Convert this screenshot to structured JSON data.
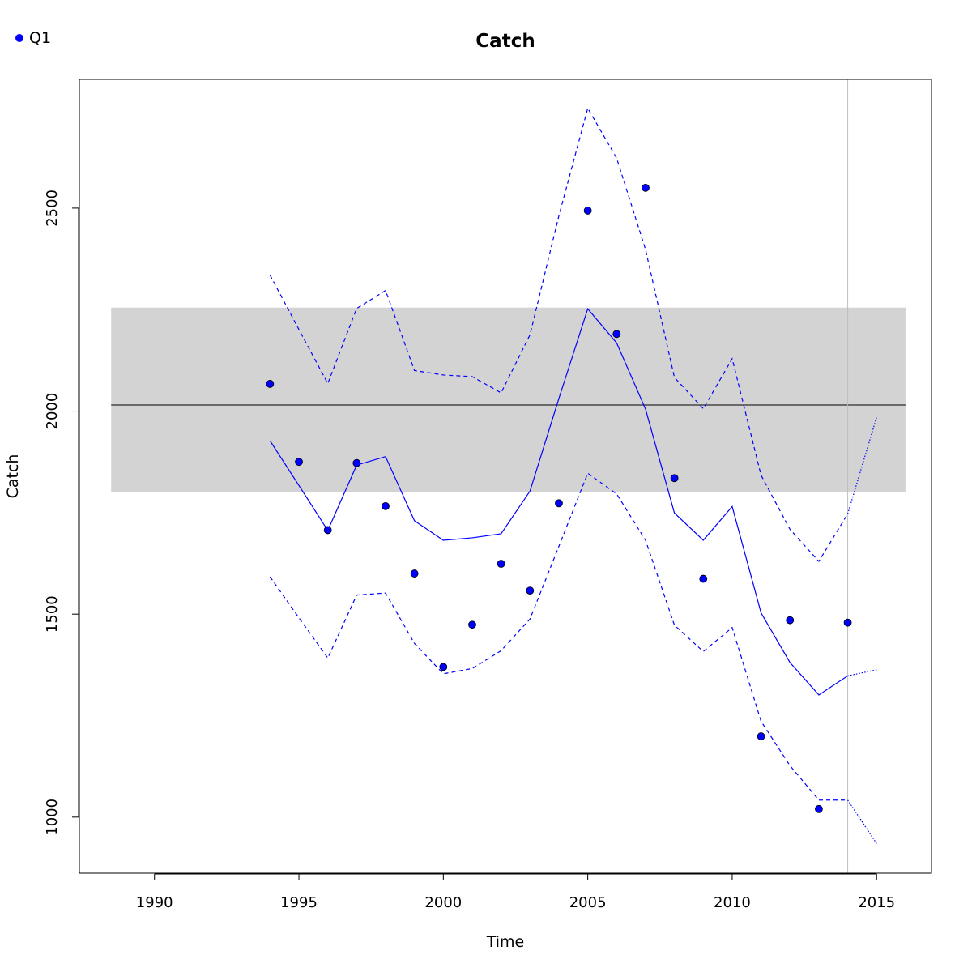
{
  "chart_data": {
    "type": "line",
    "title": "Catch",
    "xlabel": "Time",
    "ylabel": "Catch",
    "xlim": [
      1987.4,
      2016.9
    ],
    "ylim": [
      862,
      2817
    ],
    "x_ticks": [
      1990,
      1995,
      2000,
      2005,
      2010,
      2015
    ],
    "y_ticks": [
      1000,
      1500,
      2000,
      2500
    ],
    "legend": {
      "position": "top-left",
      "entries": [
        {
          "label": "Q1",
          "color": "#0000ff"
        }
      ]
    },
    "reference_band": {
      "x_range": [
        1988.5,
        2016.0
      ],
      "y_range": [
        1800,
        2255
      ],
      "color": "#d3d3d3"
    },
    "reference_line": {
      "y": 2015,
      "color": "#000000"
    },
    "vertical_line": {
      "x": 2014,
      "color": "#bebebe"
    },
    "series": [
      {
        "name": "Q1",
        "style": "points",
        "color": "#0000ff",
        "x": [
          1994,
          1995,
          1996,
          1997,
          1998,
          1999,
          2000,
          2001,
          2002,
          2003,
          2004,
          2005,
          2006,
          2007,
          2008,
          2009,
          2010,
          2011,
          2012,
          2013,
          2014
        ],
        "y": [
          2067,
          1875,
          1707,
          1872,
          1766,
          1600,
          1370,
          1474,
          1624,
          1558,
          1773,
          2494,
          2190,
          2550,
          1835,
          1587,
          null,
          1199,
          1485,
          1020,
          1479
        ]
      },
      {
        "style": "solid",
        "color": "#0000ff",
        "x": [
          1994,
          1995,
          1996,
          1997,
          1998,
          1999,
          2000,
          2001,
          2002,
          2003,
          2004,
          2005,
          2006,
          2007,
          2008,
          2009,
          2010,
          2011,
          2012,
          2013,
          2014
        ],
        "y": [
          1927,
          1817,
          1706,
          1867,
          1888,
          1730,
          1682,
          1688,
          1698,
          1803,
          2031,
          2252,
          2168,
          2005,
          1749,
          1682,
          1765,
          1503,
          1381,
          1301,
          1348
        ]
      },
      {
        "style": "dashed",
        "color": "#0000ff",
        "x": [
          1994,
          1995,
          1996,
          1997,
          1998,
          1999,
          2000,
          2001,
          2002,
          2003,
          2004,
          2005,
          2006,
          2007,
          2008,
          2009,
          2010,
          2011,
          2012,
          2013,
          2014
        ],
        "y": [
          2335,
          2201,
          2068,
          2253,
          2297,
          2100,
          2089,
          2085,
          2045,
          2188,
          2481,
          2746,
          2623,
          2398,
          2083,
          2006,
          2129,
          1842,
          1709,
          1630,
          1747
        ]
      },
      {
        "style": "dashed",
        "color": "#0000ff",
        "x": [
          1994,
          1995,
          1996,
          1997,
          1998,
          1999,
          2000,
          2001,
          2002,
          2003,
          2004,
          2005,
          2006,
          2007,
          2008,
          2009,
          2010,
          2011,
          2012,
          2013,
          2014
        ],
        "y": [
          1592,
          1491,
          1392,
          1547,
          1552,
          1428,
          1353,
          1366,
          1410,
          1488,
          1667,
          1847,
          1796,
          1682,
          1473,
          1408,
          1467,
          1236,
          1127,
          1042,
          1042
        ]
      },
      {
        "style": "dotted",
        "color": "#0000ff",
        "x": [
          2014,
          2015
        ],
        "y": [
          1348,
          1363
        ]
      },
      {
        "style": "dotted",
        "color": "#0000ff",
        "x": [
          2014,
          2015
        ],
        "y": [
          1747,
          1985
        ]
      },
      {
        "style": "dotted",
        "color": "#0000ff",
        "x": [
          2014,
          2015
        ],
        "y": [
          1042,
          935
        ]
      }
    ]
  }
}
